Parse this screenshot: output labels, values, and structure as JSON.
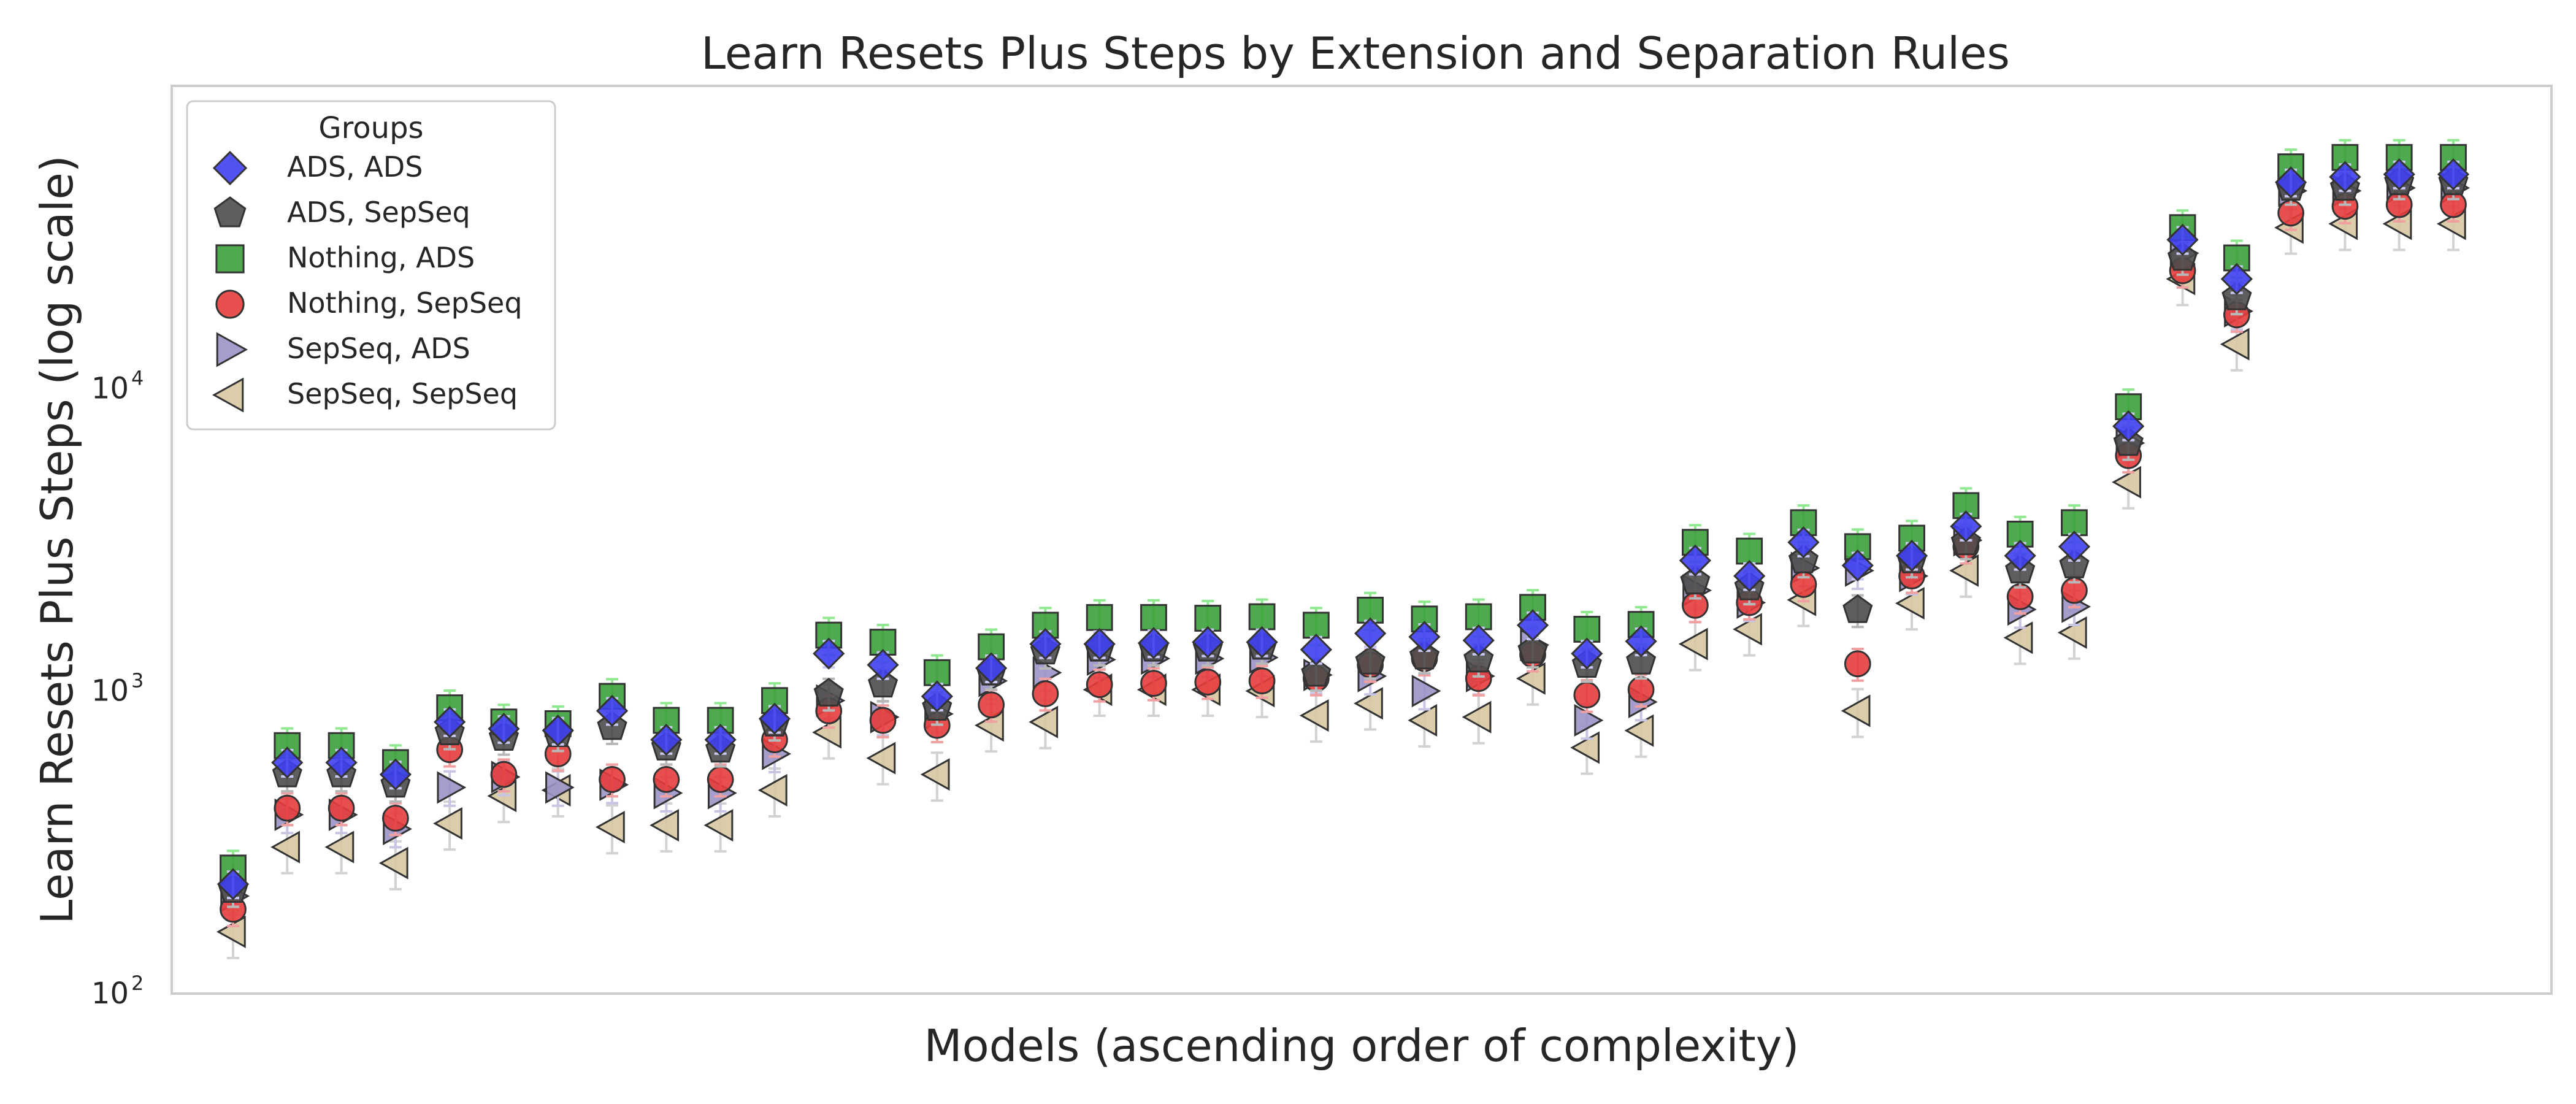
{
  "chart_data": {
    "type": "scatter",
    "title": "Learn Resets Plus Steps by Extension and Separation Rules",
    "xlabel": "Models (ascending order of complexity)",
    "ylabel": "Learn Resets Plus Steps (log scale)",
    "yscale": "log",
    "ylim": [
      100,
      100000
    ],
    "y_ticks": [
      {
        "base": "10",
        "exp": "2",
        "value": 100
      },
      {
        "base": "10",
        "exp": "3",
        "value": 1000
      },
      {
        "base": "10",
        "exp": "4",
        "value": 10000
      }
    ],
    "x": [
      1,
      2,
      3,
      4,
      5,
      6,
      7,
      8,
      9,
      10,
      11,
      12,
      13,
      14,
      15,
      16,
      17,
      18,
      19,
      20,
      21,
      22,
      23,
      24,
      25,
      26,
      27,
      28,
      29,
      30,
      31,
      32,
      33,
      34,
      35,
      36,
      37,
      38,
      39,
      40,
      41,
      42
    ],
    "grid": false,
    "legend": {
      "title": "Groups",
      "placement": "top-left"
    },
    "series": [
      {
        "name": "ADS, ADS",
        "marker": "diamond",
        "color": "#3f3ff0",
        "err_color": "#c8c8f5",
        "values": [
          230,
          580,
          580,
          530,
          790,
          750,
          740,
          860,
          690,
          690,
          810,
          1330,
          1220,
          960,
          1190,
          1430,
          1430,
          1440,
          1450,
          1450,
          1370,
          1550,
          1510,
          1470,
          1650,
          1330,
          1460,
          2700,
          2400,
          3100,
          2600,
          2800,
          3500,
          2800,
          3000,
          7500,
          31000,
          23000,
          48000,
          50000,
          51000,
          51000
        ]
      },
      {
        "name": "ADS, SepSeq",
        "marker": "pentagon",
        "color": "#4d4d4d",
        "err_color": "#b8b8b8",
        "values": [
          220,
          530,
          530,
          490,
          730,
          700,
          720,
          760,
          650,
          640,
          780,
          980,
          1050,
          880,
          1150,
          1350,
          1380,
          1380,
          1380,
          1400,
          1140,
          1250,
          1300,
          1270,
          1360,
          1220,
          1250,
          2300,
          2200,
          2700,
          1850,
          2700,
          3100,
          2500,
          2600,
          6600,
          27000,
          20000,
          46000,
          46000,
          48000,
          48000
        ]
      },
      {
        "name": "Nothing, ADS",
        "marker": "square",
        "color": "#3ca03c",
        "err_color": "#90e890",
        "values": [
          260,
          660,
          660,
          580,
          880,
          790,
          780,
          960,
          800,
          800,
          930,
          1530,
          1450,
          1150,
          1400,
          1650,
          1750,
          1750,
          1740,
          1760,
          1650,
          1850,
          1730,
          1760,
          1890,
          1600,
          1660,
          3100,
          2900,
          3600,
          3000,
          3200,
          4100,
          3300,
          3600,
          8700,
          34000,
          27000,
          54000,
          58000,
          58000,
          58000
        ]
      },
      {
        "name": "Nothing, SepSeq",
        "marker": "circle",
        "color": "#e63c3c",
        "err_color": "#f0a0a0",
        "values": [
          190,
          410,
          410,
          380,
          640,
          530,
          620,
          510,
          510,
          510,
          690,
          860,
          800,
          770,
          900,
          980,
          1050,
          1060,
          1070,
          1080,
          1100,
          1220,
          1280,
          1100,
          1320,
          970,
          1010,
          1920,
          1960,
          2250,
          1230,
          2400,
          3000,
          2050,
          2150,
          6000,
          24500,
          17500,
          38000,
          40000,
          40500,
          40500
        ]
      },
      {
        "name": "SepSeq, ADS",
        "marker": "triangle-right",
        "color": "#9b94c8",
        "err_color": "#c8c4e4",
        "values": [
          210,
          390,
          390,
          350,
          480,
          520,
          480,
          490,
          460,
          460,
          620,
          930,
          820,
          840,
          1080,
          1150,
          1270,
          1280,
          1280,
          1290,
          1130,
          1120,
          1000,
          1120,
          1420,
          800,
          920,
          2150,
          1960,
          2550,
          2500,
          2400,
          3150,
          1860,
          1900,
          6600,
          28000,
          18000,
          45000,
          45000,
          46000,
          46000
        ]
      },
      {
        "name": "SepSeq, SepSeq",
        "marker": "triangle-left",
        "color": "#d7c8a0",
        "err_color": "#d2d2d2",
        "values": [
          160,
          305,
          305,
          270,
          365,
          450,
          470,
          355,
          360,
          360,
          470,
          730,
          600,
          530,
          770,
          790,
          1010,
          1010,
          1010,
          1000,
          830,
          910,
          800,
          820,
          1100,
          650,
          740,
          1430,
          1600,
          2000,
          860,
          1950,
          2500,
          1500,
          1560,
          4900,
          23000,
          14000,
          34000,
          35000,
          35000,
          35000
        ]
      }
    ]
  }
}
